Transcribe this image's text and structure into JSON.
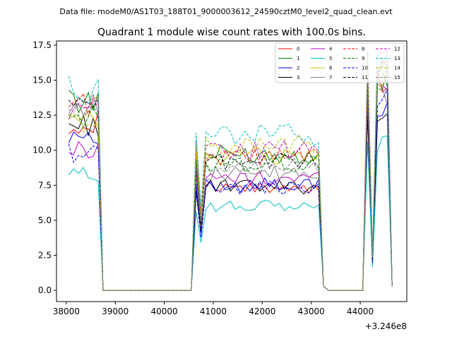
{
  "suptitle": "Data file: modeM0/AS1T03_188T01_9000003612_24590cztM0_level2_quad_clean.evt",
  "chart_data": {
    "type": "line",
    "title": "Quadrant 1 module wise count rates with 100.0s bins.",
    "xlabel": "",
    "ylabel": "",
    "x_offset_label": "+3.246e8",
    "xlim": [
      37800,
      44950
    ],
    "ylim": [
      -0.8,
      17.8
    ],
    "x_ticks": [
      38000,
      39000,
      40000,
      41000,
      42000,
      43000,
      44000
    ],
    "x_tick_labels": [
      "38000",
      "39000",
      "40000",
      "41000",
      "42000",
      "43000",
      "44000"
    ],
    "y_ticks": [
      0,
      2.5,
      5,
      7.5,
      10,
      12.5,
      15,
      17.5
    ],
    "y_tick_labels": [
      "0.0",
      "2.5",
      "5.0",
      "7.5",
      "10.0",
      "12.5",
      "15.0",
      "17.5"
    ],
    "grid": false,
    "legend_position": "top-right",
    "segments": [
      {
        "start": 38050,
        "end": 38750
      },
      {
        "start": 38850,
        "end": 40650
      },
      {
        "start": 40650,
        "end": 43250
      },
      {
        "start": 43250,
        "end": 44150
      },
      {
        "start": 44150,
        "end": 44650
      }
    ],
    "series": [
      {
        "name": "0",
        "color": "#ff0000",
        "dash": false,
        "levels": [
          12.0,
          0,
          7.3,
          0,
          15.0
        ]
      },
      {
        "name": "1",
        "color": "#008000",
        "dash": false,
        "levels": [
          13.5,
          0,
          9.7,
          0,
          15.5
        ]
      },
      {
        "name": "2",
        "color": "#0000ff",
        "dash": false,
        "levels": [
          11.2,
          0,
          7.5,
          0,
          12.8
        ]
      },
      {
        "name": "3",
        "color": "#000000",
        "dash": false,
        "levels": [
          11.8,
          0,
          7.4,
          0,
          12.6
        ]
      },
      {
        "name": "4",
        "color": "#bf00bf",
        "dash": false,
        "levels": [
          10.0,
          0,
          8.0,
          0,
          14.5
        ]
      },
      {
        "name": "5",
        "color": "#00bfbf",
        "dash": false,
        "levels": [
          8.3,
          0,
          6.0,
          0,
          10.5
        ]
      },
      {
        "name": "6",
        "color": "#bfbf00",
        "dash": false,
        "levels": [
          12.0,
          0,
          9.6,
          0,
          15.2
        ]
      },
      {
        "name": "7",
        "color": "#808080",
        "dash": false,
        "levels": [
          13.2,
          0,
          8.3,
          0,
          14.2
        ]
      },
      {
        "name": "8",
        "color": "#ff0000",
        "dash": true,
        "levels": [
          13.4,
          0,
          9.5,
          0,
          16.0
        ]
      },
      {
        "name": "9",
        "color": "#008000",
        "dash": true,
        "levels": [
          12.4,
          0,
          9.0,
          0,
          14.8
        ]
      },
      {
        "name": "10",
        "color": "#0000ff",
        "dash": true,
        "levels": [
          9.8,
          0,
          7.3,
          0,
          13.8
        ]
      },
      {
        "name": "11",
        "color": "#000000",
        "dash": true,
        "levels": [
          13.0,
          0,
          9.2,
          0,
          15.3
        ]
      },
      {
        "name": "12",
        "color": "#bf00bf",
        "dash": true,
        "levels": [
          12.8,
          0,
          10.0,
          0,
          16.6
        ]
      },
      {
        "name": "13",
        "color": "#00bfbf",
        "dash": true,
        "levels": [
          14.3,
          0,
          11.1,
          0,
          16.9
        ]
      },
      {
        "name": "14",
        "color": "#bfbf00",
        "dash": true,
        "levels": [
          12.0,
          0,
          10.4,
          0,
          16.0
        ]
      },
      {
        "name": "15",
        "color": "#808080",
        "dash": true,
        "levels": [
          13.0,
          0,
          8.8,
          0,
          15.8
        ]
      }
    ]
  }
}
